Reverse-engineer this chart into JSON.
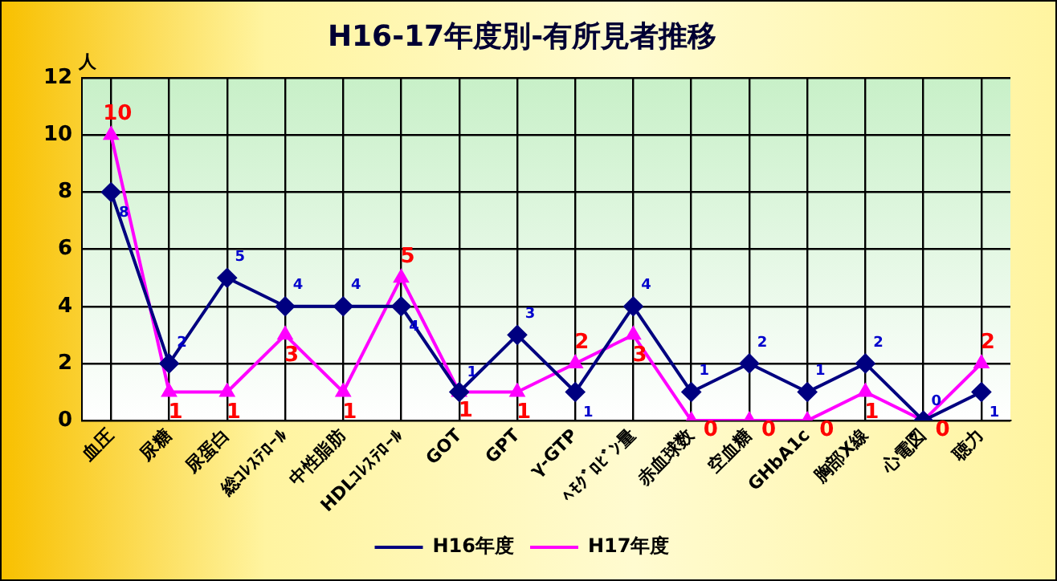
{
  "chart_data": {
    "type": "line",
    "title": "H16-17年度別-有所見者推移",
    "ylabel": "人",
    "categories": [
      "血圧",
      "尿糖",
      "尿蛋白",
      "総ｺﾚｽﾃﾛｰﾙ",
      "中性脂肪",
      "HDLｺﾚｽﾃﾛｰﾙ",
      "GOT",
      "GPT",
      "γ-GTP",
      "ﾍﾓｸﾞﾛﾋﾞﾝ量",
      "赤血球数",
      "空血糖",
      "GHbA1c",
      "胸部X線",
      "心電図",
      "聴力"
    ],
    "series": [
      {
        "name": "H16年度",
        "color": "#000080",
        "marker": "diamond",
        "values": [
          8,
          2,
          5,
          4,
          4,
          4,
          1,
          3,
          1,
          4,
          1,
          2,
          1,
          2,
          0,
          1
        ]
      },
      {
        "name": "H17年度",
        "color": "#ff00ff",
        "marker": "triangle",
        "values": [
          10,
          1,
          1,
          3,
          1,
          5,
          1,
          1,
          2,
          3,
          0,
          0,
          0,
          1,
          0,
          2
        ]
      }
    ],
    "ylim": [
      0,
      12
    ],
    "yticks": [
      0,
      2,
      4,
      6,
      8,
      10,
      12
    ],
    "grid": true,
    "legend": "bottom",
    "data_labels": true,
    "line_style": "solid"
  }
}
